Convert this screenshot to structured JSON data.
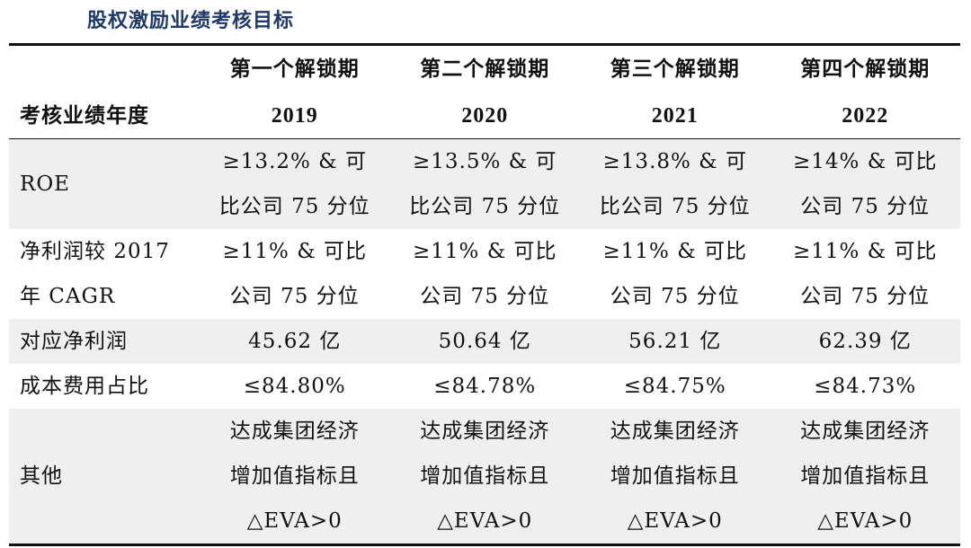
{
  "title": "股权激励业绩考核目标",
  "header": {
    "periods": [
      "第一个解锁期",
      "第二个解锁期",
      "第三个解锁期",
      "第四个解锁期"
    ],
    "year_label": "考核业绩年度",
    "years": [
      "2019",
      "2020",
      "2021",
      "2022"
    ]
  },
  "rows": [
    {
      "label_lines": [
        "ROE"
      ],
      "cells": [
        [
          "≥13.2% & 可",
          "比公司 75 分位"
        ],
        [
          "≥13.5% & 可",
          "比公司 75 分位"
        ],
        [
          "≥13.8% & 可",
          "比公司 75 分位"
        ],
        [
          "≥14% & 可比",
          "公司 75 分位"
        ]
      ]
    },
    {
      "label_lines": [
        "净利润较 2017",
        "年 CAGR"
      ],
      "cells": [
        [
          "≥11% & 可比",
          "公司 75 分位"
        ],
        [
          "≥11% & 可比",
          "公司 75 分位"
        ],
        [
          "≥11% & 可比",
          "公司 75 分位"
        ],
        [
          "≥11% & 可比",
          "公司 75 分位"
        ]
      ]
    },
    {
      "label_lines": [
        "对应净利润"
      ],
      "cells": [
        [
          "45.62 亿"
        ],
        [
          "50.64 亿"
        ],
        [
          "56.21 亿"
        ],
        [
          "62.39 亿"
        ]
      ]
    },
    {
      "label_lines": [
        "成本费用占比"
      ],
      "cells": [
        [
          "≤84.80%"
        ],
        [
          "≤84.78%"
        ],
        [
          "≤84.75%"
        ],
        [
          "≤84.73%"
        ]
      ]
    },
    {
      "label_lines": [
        "其他"
      ],
      "cells": [
        [
          "达成集团经济",
          "增加值指标且",
          "△EVA>0"
        ],
        [
          "达成集团经济",
          "增加值指标且",
          "△EVA>0"
        ],
        [
          "达成集团经济",
          "增加值指标且",
          "△EVA>0"
        ],
        [
          "达成集团经济",
          "增加值指标且",
          "△EVA>0"
        ]
      ]
    }
  ]
}
